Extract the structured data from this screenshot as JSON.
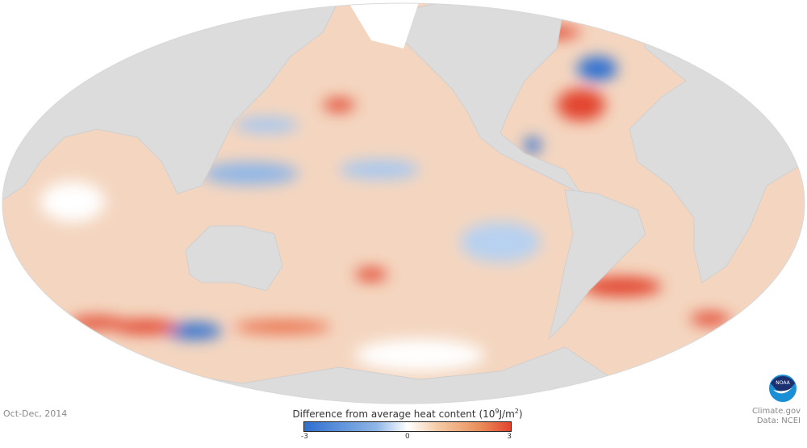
{
  "period": "Oct-Dec, 2014",
  "legend": {
    "title": "Difference from average heat content",
    "unit_prefix": "(10",
    "unit_exp": "9",
    "unit_mid": "J/m",
    "unit_exp2": "2",
    "unit_suffix": ")",
    "min_label": "-3",
    "mid_label": "0",
    "max_label": "3",
    "colors": {
      "low": "#2f6fd0",
      "mid": "#ffffff",
      "high": "#e2452f"
    }
  },
  "credit": {
    "site": "Climate.gov",
    "source": "Data: NCEI",
    "logo_text": "NOAA"
  }
}
